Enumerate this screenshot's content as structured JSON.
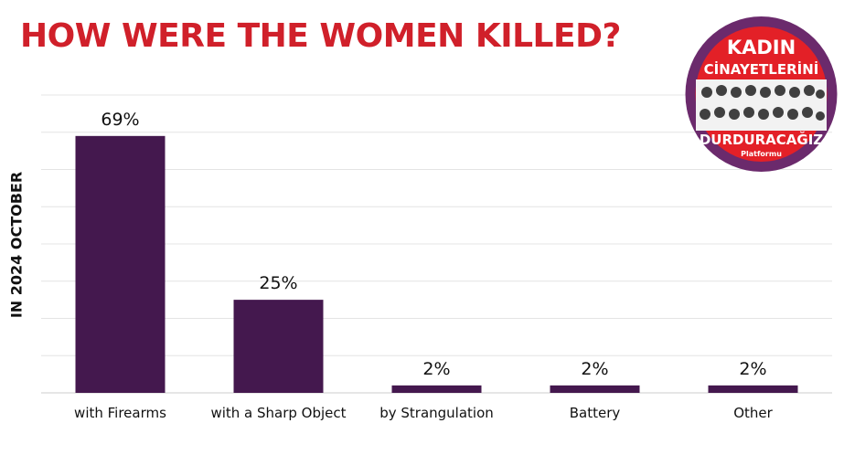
{
  "title": "HOW WERE THE WOMEN KILLED?",
  "y_axis_label": "IN 2024 OCTOBER",
  "logo": {
    "line1": "KADIN",
    "line2": "CİNAYETLERİNİ",
    "line3": "DURDURACAĞIZ",
    "line4": "Platformu"
  },
  "colors": {
    "bar": "#44184e",
    "title": "#d0202a",
    "logo_ring": "#6b2a6c",
    "logo_red": "#e32027"
  },
  "chart_data": {
    "type": "bar",
    "title": "HOW WERE THE WOMEN KILLED?",
    "xlabel": "",
    "ylabel": "IN 2024 OCTOBER",
    "categories": [
      "with Firearms",
      "with a Sharp Object",
      "by Strangulation",
      "Battery",
      "Other"
    ],
    "values": [
      69,
      25,
      2,
      2,
      2
    ],
    "value_labels": [
      "69%",
      "25%",
      "2%",
      "2%",
      "2%"
    ],
    "ylim": [
      0,
      80
    ],
    "grid": true,
    "legend": "none"
  }
}
